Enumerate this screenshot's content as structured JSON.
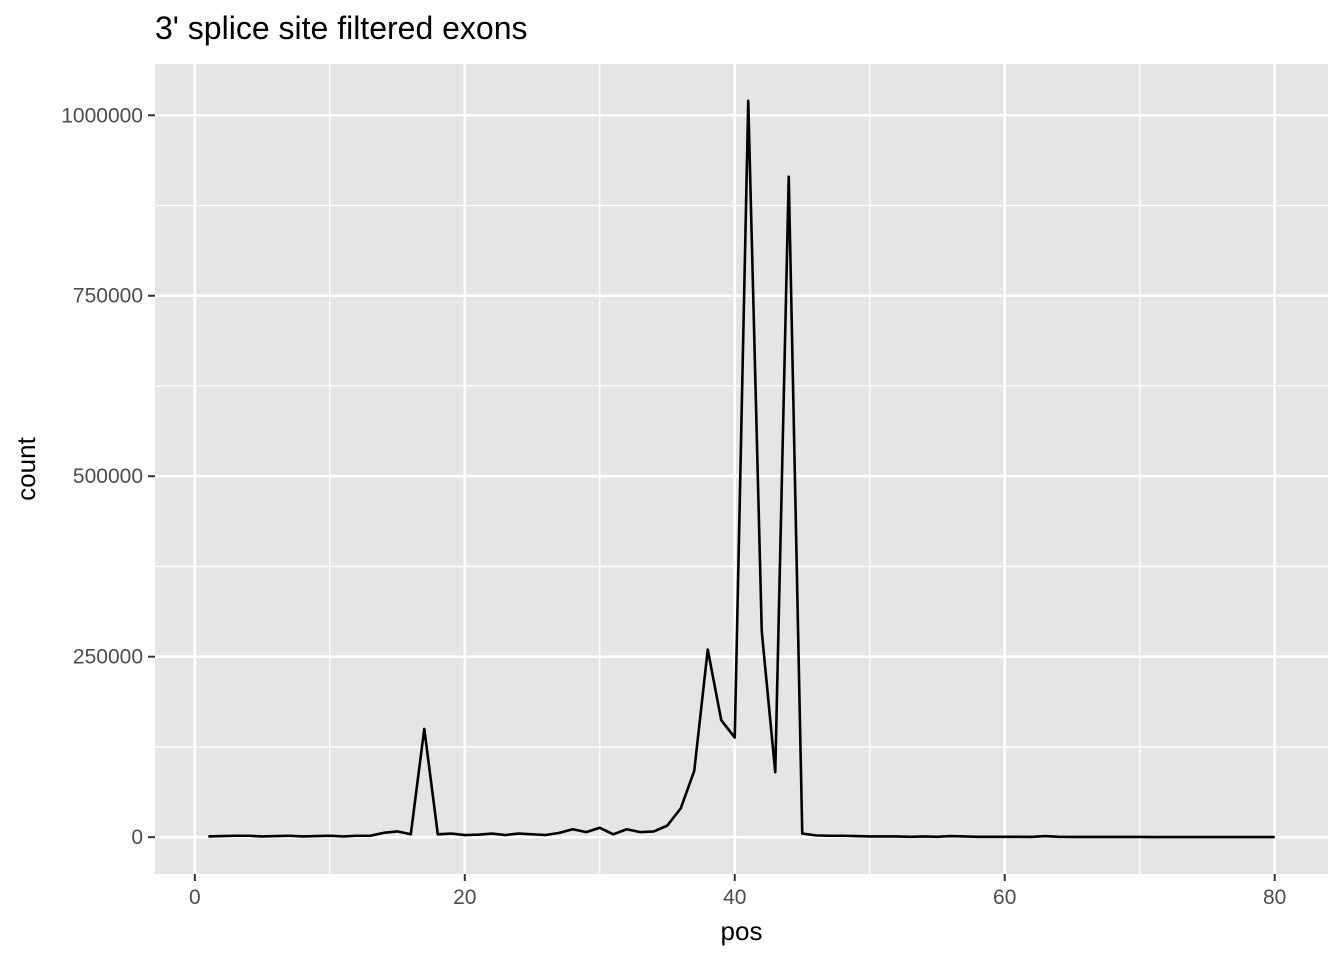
{
  "chart_data": {
    "type": "line",
    "title": "3' splice site filtered exons",
    "xlabel": "pos",
    "ylabel": "count",
    "xlim": [
      -2.95,
      83.95
    ],
    "ylim": [
      -51000,
      1071000
    ],
    "x_ticks": [
      0,
      20,
      40,
      60,
      80
    ],
    "y_ticks": [
      0,
      250000,
      500000,
      750000,
      1000000
    ],
    "x_tick_labels": [
      "0",
      "20",
      "40",
      "60",
      "80"
    ],
    "y_tick_labels": [
      "0",
      "250000",
      "500000",
      "750000",
      "1000000"
    ],
    "grid": true,
    "legend": "none",
    "colors": {
      "panel": "#e5e5e5",
      "grid": "#ffffff",
      "line": "#000000"
    },
    "series": [
      {
        "x": [
          1,
          2,
          3,
          4,
          5,
          6,
          7,
          8,
          9,
          10,
          11,
          12,
          13,
          14,
          15,
          16,
          17,
          18,
          19,
          20,
          21,
          22,
          23,
          24,
          25,
          26,
          27,
          28,
          29,
          30,
          31,
          32,
          33,
          34,
          35,
          36,
          37,
          38,
          39,
          40,
          41,
          42,
          43,
          44,
          45,
          46,
          47,
          48,
          49,
          50,
          51,
          52,
          53,
          54,
          55,
          56,
          57,
          58,
          59,
          60,
          61,
          62,
          63,
          64,
          65,
          66,
          67,
          68,
          69,
          70,
          71,
          72,
          73,
          74,
          75,
          76,
          77,
          78,
          79,
          80
        ],
        "values": [
          1000,
          1500,
          2000,
          2000,
          1000,
          1500,
          2000,
          1000,
          1500,
          2000,
          1000,
          2000,
          2000,
          6000,
          8000,
          4000,
          150000,
          4000,
          5000,
          3000,
          3500,
          5000,
          3000,
          5000,
          4000,
          3000,
          6000,
          11000,
          7000,
          13000,
          4000,
          11000,
          7000,
          8000,
          16000,
          40000,
          92000,
          260000,
          162000,
          138000,
          1020000,
          285000,
          90000,
          915000,
          5000,
          2500,
          2000,
          2000,
          1500,
          1000,
          1000,
          1000,
          500,
          1000,
          500,
          1500,
          1000,
          500,
          500,
          500,
          500,
          300,
          1500,
          500,
          300,
          300,
          300,
          300,
          300,
          300,
          200,
          200,
          200,
          200,
          200,
          100,
          100,
          100,
          100,
          100
        ]
      }
    ]
  }
}
